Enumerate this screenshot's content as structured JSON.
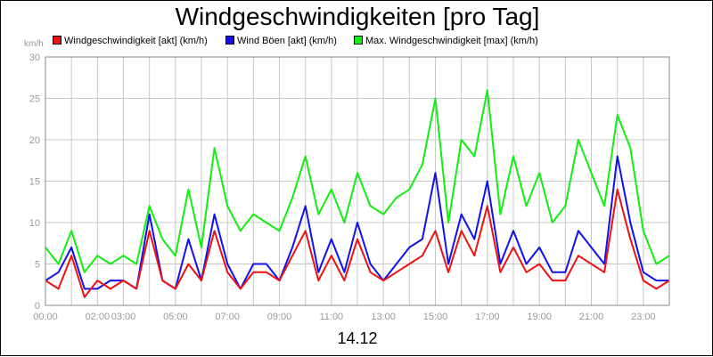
{
  "chart_data": {
    "type": "line",
    "title": "Windgeschwindigkeiten [pro Tag]",
    "ylabel": "km/h",
    "xlabel": "14.12",
    "ylim": [
      0,
      30
    ],
    "xlim": [
      0,
      24
    ],
    "grid": true,
    "legend_position": "top",
    "y_ticks": [
      "0",
      "5",
      "10",
      "15",
      "20",
      "25",
      "30"
    ],
    "x_tick_labels": [
      "00:00",
      "02:00",
      "03:00",
      "05:00",
      "07:00",
      "09:00",
      "11:00",
      "13:00",
      "15:00",
      "17:00",
      "19:00",
      "21:00",
      "23:00"
    ],
    "x_tick_hours": [
      0,
      2,
      3,
      5,
      7,
      9,
      11,
      13,
      15,
      17,
      19,
      21,
      23
    ],
    "x": [
      0,
      0.5,
      1,
      1.5,
      2,
      2.5,
      3,
      3.5,
      4,
      4.5,
      5,
      5.5,
      6,
      6.5,
      7,
      7.5,
      8,
      8.5,
      9,
      9.5,
      10,
      10.5,
      11,
      11.5,
      12,
      12.5,
      13,
      13.5,
      14,
      14.5,
      15,
      15.5,
      16,
      16.5,
      17,
      17.5,
      18,
      18.5,
      19,
      19.5,
      20,
      20.5,
      21,
      21.5,
      22,
      22.5,
      23,
      23.5,
      24
    ],
    "series": [
      {
        "name": "Windgeschwindigkeit [akt] (km/h)",
        "color": "#ee1111",
        "values": [
          3,
          2,
          6,
          1,
          3,
          2,
          3,
          2,
          9,
          3,
          2,
          5,
          3,
          9,
          4,
          2,
          4,
          4,
          3,
          6,
          9,
          3,
          6,
          3,
          8,
          4,
          3,
          4,
          5,
          6,
          9,
          4,
          9,
          6,
          12,
          4,
          7,
          4,
          5,
          3,
          3,
          6,
          5,
          4,
          14,
          8,
          3,
          2,
          3
        ]
      },
      {
        "name": "Wind Böen [akt] (km/h)",
        "color": "#1111ee",
        "values": [
          3,
          4,
          7,
          2,
          2,
          3,
          3,
          2,
          11,
          3,
          2,
          8,
          3,
          11,
          5,
          2,
          5,
          5,
          3,
          7,
          12,
          4,
          8,
          4,
          10,
          5,
          3,
          5,
          7,
          8,
          16,
          5,
          11,
          8,
          15,
          5,
          9,
          5,
          7,
          4,
          4,
          9,
          7,
          5,
          18,
          10,
          4,
          3,
          3
        ]
      },
      {
        "name": "Max. Windgeschwindigkeit [max] (km/h)",
        "color": "#11ee11",
        "values": [
          7,
          5,
          9,
          4,
          6,
          5,
          6,
          5,
          12,
          8,
          6,
          14,
          7,
          19,
          12,
          9,
          11,
          10,
          9,
          13,
          18,
          11,
          14,
          10,
          16,
          12,
          11,
          13,
          14,
          17,
          25,
          10,
          20,
          18,
          26,
          11,
          18,
          12,
          16,
          10,
          12,
          20,
          16,
          12,
          23,
          19,
          9,
          5,
          6
        ]
      }
    ]
  }
}
